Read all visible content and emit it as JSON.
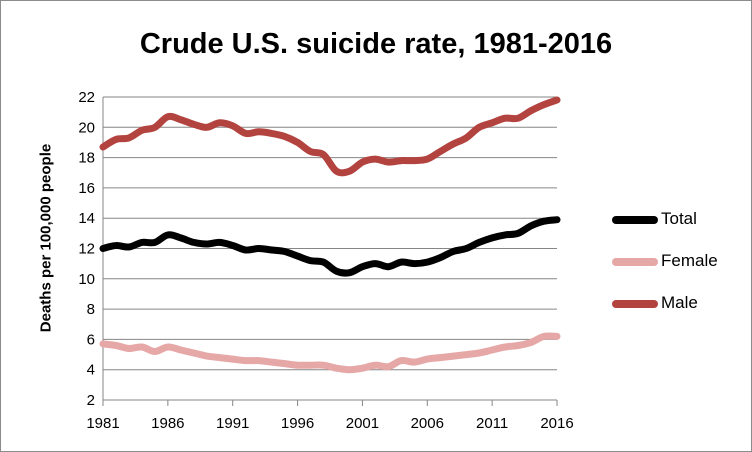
{
  "chart_data": {
    "type": "line",
    "title": "Crude U.S. suicide rate, 1981-2016",
    "xlabel": "",
    "ylabel": "Deaths per 100,000 people",
    "ylim": [
      2,
      22
    ],
    "yticks": [
      2,
      4,
      6,
      8,
      10,
      12,
      14,
      16,
      18,
      20,
      22
    ],
    "xticks": [
      1981,
      1986,
      1991,
      1996,
      2001,
      2006,
      2011,
      2016
    ],
    "xlim": [
      1981,
      2016
    ],
    "grid": true,
    "legend_position": "right",
    "x": [
      1981,
      1982,
      1983,
      1984,
      1985,
      1986,
      1987,
      1988,
      1989,
      1990,
      1991,
      1992,
      1993,
      1994,
      1995,
      1996,
      1997,
      1998,
      1999,
      2000,
      2001,
      2002,
      2003,
      2004,
      2005,
      2006,
      2007,
      2008,
      2009,
      2010,
      2011,
      2012,
      2013,
      2014,
      2015,
      2016
    ],
    "series": [
      {
        "name": "Total",
        "color": "#000000",
        "values": [
          12.0,
          12.2,
          12.1,
          12.4,
          12.4,
          12.9,
          12.7,
          12.4,
          12.3,
          12.4,
          12.2,
          11.9,
          12.0,
          11.9,
          11.8,
          11.5,
          11.2,
          11.1,
          10.5,
          10.4,
          10.8,
          11.0,
          10.8,
          11.1,
          11.0,
          11.1,
          11.4,
          11.8,
          12.0,
          12.4,
          12.7,
          12.9,
          13.0,
          13.5,
          13.8,
          13.9
        ]
      },
      {
        "name": "Female",
        "color": "#e6a7a7",
        "values": [
          5.7,
          5.6,
          5.4,
          5.5,
          5.2,
          5.5,
          5.3,
          5.1,
          4.9,
          4.8,
          4.7,
          4.6,
          4.6,
          4.5,
          4.4,
          4.3,
          4.3,
          4.3,
          4.1,
          4.0,
          4.1,
          4.3,
          4.2,
          4.6,
          4.5,
          4.7,
          4.8,
          4.9,
          5.0,
          5.1,
          5.3,
          5.5,
          5.6,
          5.8,
          6.2,
          6.2
        ]
      },
      {
        "name": "Male",
        "color": "#b3433f",
        "values": [
          18.7,
          19.2,
          19.3,
          19.8,
          20.0,
          20.7,
          20.5,
          20.2,
          20.0,
          20.3,
          20.1,
          19.6,
          19.7,
          19.6,
          19.4,
          19.0,
          18.4,
          18.2,
          17.1,
          17.1,
          17.7,
          17.9,
          17.7,
          17.8,
          17.8,
          17.9,
          18.4,
          18.9,
          19.3,
          20.0,
          20.3,
          20.6,
          20.6,
          21.1,
          21.5,
          21.8
        ]
      }
    ]
  }
}
